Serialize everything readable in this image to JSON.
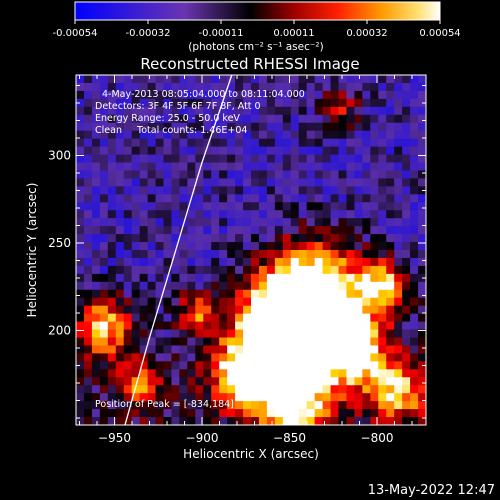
{
  "colors": {
    "background": "#000000",
    "foreground": "#ffffff",
    "colormap": [
      "#0000ff",
      "#5a2ea6",
      "#000000",
      "#8b0000",
      "#ff0000",
      "#ff8c00",
      "#ffd200",
      "#ffffff"
    ]
  },
  "chart_data": {
    "type": "heatmap",
    "title": "Reconstructed RHESSI Image",
    "xlabel": "Heliocentric X (arcsec)",
    "ylabel": "Heliocentric Y (arcsec)",
    "xlim": [
      -972,
      -772
    ],
    "ylim": [
      146,
      346
    ],
    "x_ticks": [
      -950,
      -900,
      -850,
      -800
    ],
    "y_ticks": [
      200,
      250,
      300
    ],
    "colorbar": {
      "range": [
        -0.00054,
        0.00054
      ],
      "ticks": [
        "-0.00054",
        "-0.00032",
        "-0.00011",
        "0.00011",
        "0.00032",
        "0.00054"
      ],
      "label": "(photons cm⁻² s⁻¹ asec⁻²)"
    },
    "annotations": [
      "4-May-2013 08:05:04.000 to 08:11:04.000",
      "Detectors: 3F 4F 5F 6F 7F 8F, Att 0",
      "Energy Range: 25.0 - 50.0 keV",
      "Clean     Total counts: 1.46E+04"
    ],
    "peak_label": "Position of Peak = [-834,184]",
    "peak": [
      -834,
      184
    ],
    "limb": [
      [
        -944,
        146
      ],
      [
        -930,
        196
      ],
      [
        -915,
        246
      ],
      [
        -900,
        296
      ],
      [
        -883,
        346
      ]
    ],
    "grid": false,
    "legend": "colorbar top"
  },
  "timestamp": "13-May-2022 12:47"
}
